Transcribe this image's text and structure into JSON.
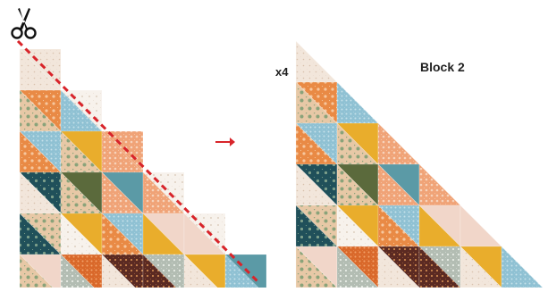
{
  "labels": {
    "multiplier": "x4",
    "block_title": "Block 2"
  },
  "icons": {
    "scissors": "scissors-icon",
    "arrow": "arrow-right-icon"
  },
  "colors": {
    "cut_line": "#d8242a",
    "arrow": "#d8242a",
    "ink": "#222222",
    "palette": {
      "cream": "#f2e6db",
      "blush": "#f1d6c9",
      "peach": "#f0a377",
      "orange": "#e98a45",
      "burnt": "#d9682a",
      "gold": "#e9ad2c",
      "teal": "#5b9aa6",
      "sky": "#8fc1d3",
      "dark_teal": "#20505a",
      "olive": "#5b6a3c",
      "plum": "#5b2a22",
      "sage": "#b3bdb3",
      "floral": "#e7c8a6",
      "white": "#f7f2ec"
    }
  }
}
